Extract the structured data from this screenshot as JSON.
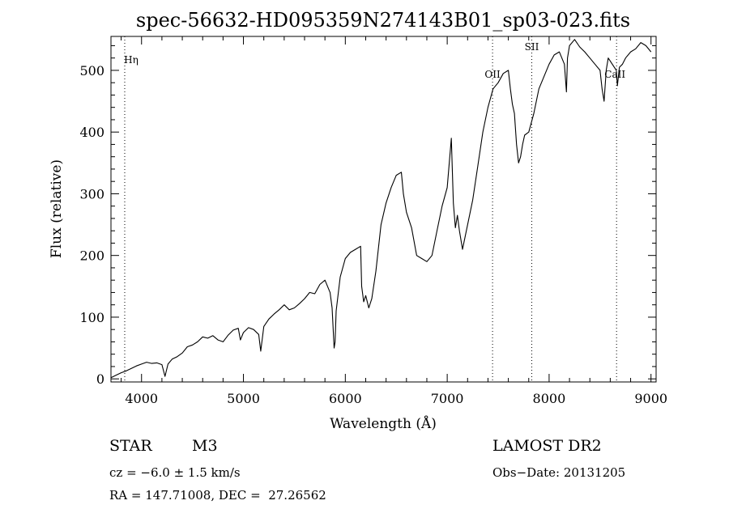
{
  "chart_data": {
    "type": "line",
    "title": "spec-56632-HD095359N274143B01_sp03-023.fits",
    "xlabel": "Wavelength (Å)",
    "ylabel": "Flux (relative)",
    "xlim": [
      3700,
      9050
    ],
    "ylim": [
      -5,
      555
    ],
    "x_ticks": [
      4000,
      5000,
      6000,
      7000,
      8000,
      9000
    ],
    "y_ticks": [
      0,
      100,
      200,
      300,
      400,
      500
    ],
    "grid": false,
    "series": [
      {
        "x": [
          3700,
          3750,
          3800,
          3850,
          3900,
          3950,
          4000,
          4050,
          4100,
          4150,
          4200,
          4230,
          4260,
          4300,
          4350,
          4400,
          4450,
          4500,
          4550,
          4600,
          4650,
          4700,
          4750,
          4800,
          4850,
          4900,
          4950,
          4970,
          5000,
          5050,
          5100,
          5150,
          5170,
          5200,
          5250,
          5300,
          5350,
          5400,
          5450,
          5500,
          5550,
          5600,
          5650,
          5700,
          5750,
          5800,
          5850,
          5870,
          5890,
          5900,
          5910,
          5950,
          6000,
          6050,
          6100,
          6150,
          6160,
          6180,
          6200,
          6230,
          6260,
          6300,
          6350,
          6400,
          6450,
          6500,
          6550,
          6570,
          6600,
          6650,
          6700,
          6750,
          6800,
          6850,
          6900,
          6950,
          7000,
          7040,
          7060,
          7080,
          7100,
          7120,
          7150,
          7200,
          7250,
          7300,
          7350,
          7400,
          7450,
          7500,
          7550,
          7600,
          7620,
          7640,
          7660,
          7680,
          7700,
          7720,
          7740,
          7760,
          7800,
          7850,
          7900,
          7950,
          8000,
          8050,
          8100,
          8150,
          8170,
          8180,
          8200,
          8250,
          8300,
          8350,
          8400,
          8450,
          8500,
          8520,
          8540,
          8560,
          8580,
          8620,
          8660,
          8670,
          8690,
          8720,
          8750,
          8800,
          8850,
          8900,
          8950,
          9000
        ],
        "y": [
          2,
          6,
          10,
          13,
          17,
          21,
          24,
          27,
          25,
          26,
          23,
          4,
          24,
          32,
          36,
          42,
          52,
          55,
          60,
          68,
          66,
          70,
          63,
          60,
          71,
          79,
          82,
          63,
          75,
          83,
          80,
          72,
          45,
          85,
          97,
          105,
          112,
          120,
          112,
          115,
          122,
          130,
          140,
          138,
          153,
          160,
          140,
          115,
          50,
          60,
          110,
          165,
          195,
          205,
          210,
          215,
          150,
          125,
          135,
          115,
          130,
          175,
          250,
          285,
          310,
          330,
          335,
          300,
          270,
          245,
          200,
          195,
          190,
          200,
          240,
          280,
          310,
          390,
          285,
          245,
          265,
          240,
          210,
          250,
          290,
          345,
          400,
          440,
          470,
          480,
          495,
          500,
          470,
          445,
          430,
          380,
          350,
          360,
          380,
          395,
          400,
          430,
          470,
          490,
          510,
          525,
          530,
          510,
          465,
          520,
          540,
          550,
          538,
          530,
          520,
          510,
          500,
          470,
          450,
          500,
          520,
          510,
          500,
          475,
          505,
          510,
          520,
          530,
          535,
          545,
          540,
          530
        ]
      }
    ],
    "annotations": [
      {
        "label": "Hη",
        "x": 3835
      },
      {
        "label": "OII",
        "x": 7445
      },
      {
        "label": "SII",
        "x": 7830
      },
      {
        "label": "CaII",
        "x": 8662
      }
    ]
  },
  "info": {
    "object_type": "STAR",
    "subclass": "M3",
    "survey": "LAMOST DR2",
    "cz": "cz = −6.0 ± 1.5 km/s",
    "obs_date": "Obs−Date: 20131205",
    "coords": "RA = 147.71008, DEC =  27.26562"
  }
}
